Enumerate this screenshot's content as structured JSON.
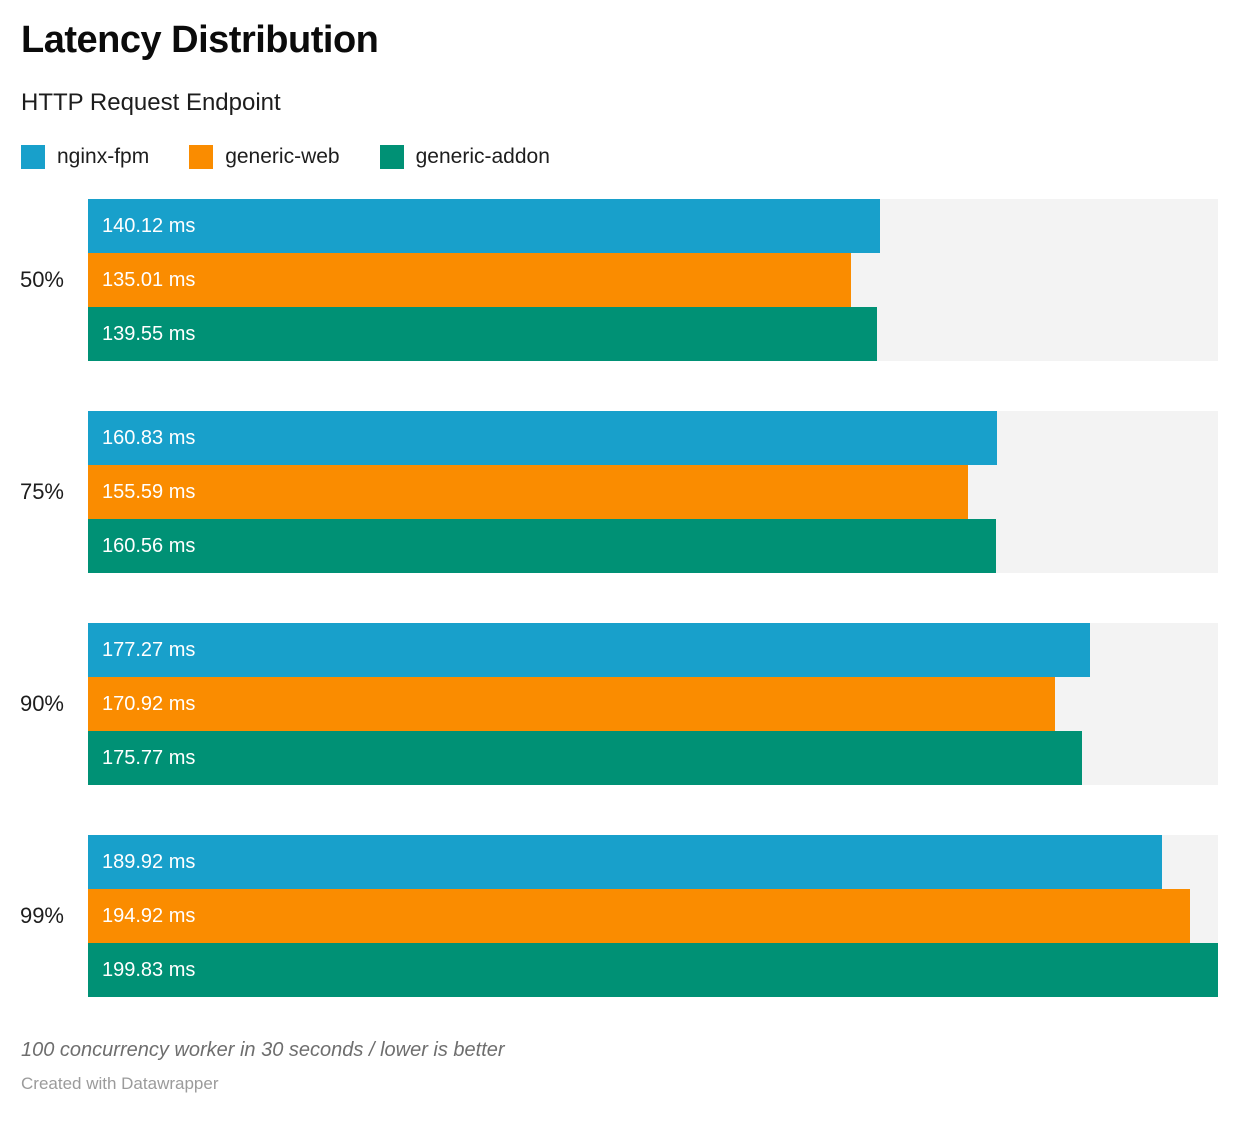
{
  "chart_data": {
    "type": "bar",
    "orientation": "horizontal",
    "title": "Latency Distribution",
    "subtitle": "HTTP Request Endpoint",
    "categories": [
      "50%",
      "75%",
      "90%",
      "99%"
    ],
    "series": [
      {
        "name": "nginx-fpm",
        "color": "#18a0cb",
        "values": [
          140.12,
          160.83,
          177.27,
          189.92
        ]
      },
      {
        "name": "generic-web",
        "color": "#fa8c00",
        "values": [
          135.01,
          155.59,
          170.92,
          194.92
        ]
      },
      {
        "name": "generic-addon",
        "color": "#009175",
        "values": [
          139.55,
          160.56,
          175.77,
          199.83
        ]
      }
    ],
    "value_suffix": " ms",
    "xlim": [
      0,
      199.83
    ],
    "grid": false,
    "legend_position": "top",
    "track_color": "#f3f3f3",
    "footnote": "100 concurrency worker in 30 seconds / lower is better",
    "attribution": "Created with Datawrapper"
  }
}
